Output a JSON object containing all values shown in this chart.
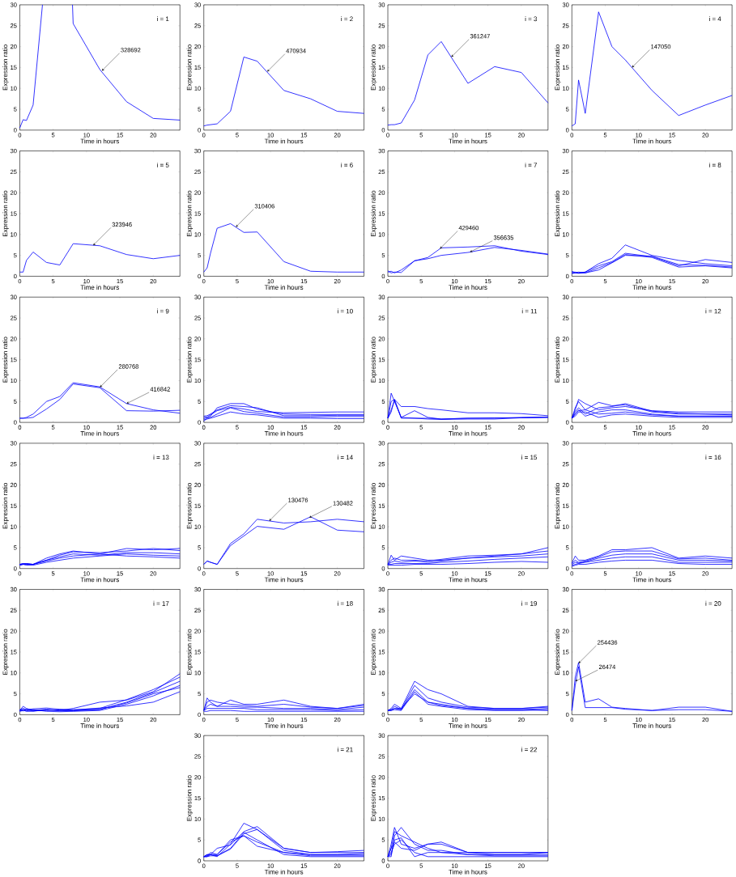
{
  "chart_data": [
    {
      "type": "line",
      "title": "i = 1",
      "xlabel": "Time in hours",
      "ylabel": "Expression ratio",
      "xlim": [
        0,
        24
      ],
      "ylim": [
        0,
        30
      ],
      "xticks": [
        0,
        5,
        10,
        15,
        20
      ],
      "yticks": [
        0,
        5,
        10,
        15,
        20,
        25,
        30
      ],
      "series": [
        {
          "color": "#0000ff",
          "x": [
            0,
            0.5,
            1,
            2,
            3.4,
            6,
            7.9,
            8,
            12,
            16,
            20,
            24
          ],
          "values": [
            0.5,
            2.5,
            2.3,
            6,
            30,
            null,
            30,
            25.5,
            14.5,
            6.8,
            2.8,
            2.4
          ]
        }
      ],
      "annotations": [
        {
          "text": "328692",
          "x": 12.3,
          "y": 14.2
        }
      ]
    },
    {
      "type": "line",
      "title": "i = 2",
      "xlabel": "Time in hours",
      "ylabel": "Expression ratio",
      "xlim": [
        0,
        24
      ],
      "ylim": [
        0,
        30
      ],
      "xticks": [
        0,
        5,
        10,
        15,
        20
      ],
      "yticks": [
        0,
        5,
        10,
        15,
        20,
        25,
        30
      ],
      "x": [
        0,
        0.5,
        1,
        2,
        4,
        6,
        8,
        12,
        16,
        20,
        24
      ],
      "series": [
        {
          "color": "#0000ff",
          "values": [
            1,
            1.2,
            1.3,
            1.5,
            4.5,
            17.5,
            16.5,
            9.5,
            7.5,
            4.5,
            4
          ]
        }
      ],
      "annotations": [
        {
          "text": "470934",
          "x": 9.5,
          "y": 14
        }
      ]
    },
    {
      "type": "line",
      "title": "i = 3",
      "xlabel": "Time in hours",
      "ylabel": "Expression ratio",
      "xlim": [
        0,
        24
      ],
      "ylim": [
        0,
        30
      ],
      "xticks": [
        0,
        5,
        10,
        15,
        20
      ],
      "yticks": [
        0,
        5,
        10,
        15,
        20,
        25,
        30
      ],
      "x": [
        0,
        0.5,
        1,
        2,
        4,
        6,
        8,
        12,
        16,
        20,
        24
      ],
      "series": [
        {
          "color": "#0000ff",
          "values": [
            1.2,
            1.3,
            1.3,
            1.7,
            7.2,
            18,
            21.2,
            11.2,
            15.2,
            13.8,
            6.5
          ]
        }
      ],
      "annotations": [
        {
          "text": "361247",
          "x": 9.5,
          "y": 17.5
        }
      ]
    },
    {
      "type": "line",
      "title": "i = 4",
      "xlabel": "Time in hours",
      "ylabel": "Expression ratio",
      "xlim": [
        0,
        24
      ],
      "ylim": [
        0,
        30
      ],
      "xticks": [
        0,
        5,
        10,
        15,
        20
      ],
      "yticks": [
        0,
        5,
        10,
        15,
        20,
        25,
        30
      ],
      "x": [
        0,
        0.5,
        1,
        2,
        4,
        6,
        8,
        12,
        16,
        20,
        24
      ],
      "series": [
        {
          "color": "#0000ff",
          "values": [
            1,
            1.5,
            12,
            4,
            28.3,
            20,
            16.8,
            9.5,
            3.5,
            6,
            8.3
          ]
        }
      ],
      "annotations": [
        {
          "text": "147050",
          "x": 9,
          "y": 15
        }
      ]
    },
    {
      "type": "line",
      "title": "i = 5",
      "xlabel": "Time in hours",
      "ylabel": "Expression ratio",
      "xlim": [
        0,
        24
      ],
      "ylim": [
        0,
        30
      ],
      "xticks": [
        0,
        5,
        10,
        15,
        20
      ],
      "yticks": [
        0,
        5,
        10,
        15,
        20,
        25,
        30
      ],
      "x": [
        0,
        0.5,
        1,
        2,
        4,
        6,
        8,
        12,
        16,
        20,
        24
      ],
      "series": [
        {
          "color": "#0000ff",
          "values": [
            1,
            1,
            3.8,
            5.8,
            3.3,
            2.7,
            7.8,
            7.3,
            5.2,
            4.2,
            5
          ]
        }
      ],
      "annotations": [
        {
          "text": "323946",
          "x": 11,
          "y": 7.4
        }
      ]
    },
    {
      "type": "line",
      "title": "i = 6",
      "xlabel": "Time in hours",
      "ylabel": "Expression ratio",
      "xlim": [
        0,
        24
      ],
      "ylim": [
        0,
        30
      ],
      "xticks": [
        0,
        5,
        10,
        15,
        20
      ],
      "yticks": [
        0,
        5,
        10,
        15,
        20,
        25,
        30
      ],
      "x": [
        0,
        0.5,
        1,
        2,
        4,
        6,
        8,
        12,
        16,
        20,
        24
      ],
      "series": [
        {
          "color": "#0000ff",
          "values": [
            1,
            2,
            5.5,
            11.5,
            12.6,
            10.5,
            10.6,
            3.5,
            1.2,
            1,
            1
          ]
        }
      ],
      "annotations": [
        {
          "text": "310406",
          "x": 4.8,
          "y": 11.8
        }
      ]
    },
    {
      "type": "line",
      "title": "i = 7",
      "xlabel": "Time in hours",
      "ylabel": "Expression ratio",
      "xlim": [
        0,
        24
      ],
      "ylim": [
        0,
        30
      ],
      "xticks": [
        0,
        5,
        10,
        15,
        20
      ],
      "yticks": [
        0,
        5,
        10,
        15,
        20,
        25,
        30
      ],
      "x": [
        0,
        0.5,
        1,
        2,
        4,
        6,
        8,
        12,
        16,
        20,
        24
      ],
      "series": [
        {
          "color": "#0000ff",
          "values": [
            1.3,
            0.8,
            1,
            0.9,
            3.7,
            4.5,
            6.8,
            7,
            7.3,
            6,
            5.2
          ]
        },
        {
          "color": "#0000ff",
          "values": [
            1,
            1.2,
            0.8,
            1.5,
            3.7,
            4.2,
            5,
            5.7,
            6.9,
            6.2,
            5.3
          ]
        }
      ],
      "annotations": [
        {
          "text": "429460",
          "x": 7.8,
          "y": 6.6
        },
        {
          "text": "356635",
          "x": 12.3,
          "y": 5.8
        }
      ]
    },
    {
      "type": "line",
      "title": "i = 8",
      "xlabel": "Time in hours",
      "ylabel": "Expression ratio",
      "xlim": [
        0,
        24
      ],
      "ylim": [
        0,
        30
      ],
      "xticks": [
        0,
        5,
        10,
        15,
        20
      ],
      "yticks": [
        0,
        5,
        10,
        15,
        20,
        25,
        30
      ],
      "x": [
        0,
        0.5,
        1,
        2,
        4,
        6,
        8,
        12,
        16,
        20,
        24
      ],
      "series": [
        {
          "color": "#0000ff",
          "values": [
            1,
            1,
            0.8,
            1,
            3,
            4.3,
            7.5,
            5,
            3.8,
            3,
            2.5
          ]
        },
        {
          "color": "#0000ff",
          "values": [
            0.8,
            0.8,
            0.8,
            1,
            2.5,
            3.5,
            5.5,
            4.7,
            2.5,
            4,
            3.3
          ]
        },
        {
          "color": "#0000ff",
          "values": [
            1.2,
            0.8,
            1,
            0.8,
            2,
            3.3,
            5.2,
            4.5,
            2.2,
            2.5,
            2
          ]
        },
        {
          "color": "#0000ff",
          "values": [
            0.6,
            0.8,
            0.7,
            0.8,
            1.5,
            3.2,
            5,
            4.8,
            2.8,
            2.6,
            2.2
          ]
        }
      ]
    },
    {
      "type": "line",
      "title": "i = 9",
      "xlabel": "Time in hours",
      "ylabel": "Expression ratio",
      "xlim": [
        0,
        24
      ],
      "ylim": [
        0,
        30
      ],
      "xticks": [
        0,
        5,
        10,
        15,
        20
      ],
      "yticks": [
        0,
        5,
        10,
        15,
        20,
        25,
        30
      ],
      "x": [
        0,
        0.5,
        1,
        2,
        4,
        6,
        8,
        12,
        16,
        20,
        24
      ],
      "series": [
        {
          "color": "#0000ff",
          "values": [
            1,
            1,
            1.2,
            2,
            5,
            6.2,
            9.5,
            8.5,
            4.5,
            3,
            2.2
          ]
        },
        {
          "color": "#0000ff",
          "values": [
            1,
            1,
            1,
            1.2,
            3.2,
            5.5,
            9.2,
            8.3,
            2.8,
            2.7,
            2.9
          ]
        }
      ],
      "annotations": [
        {
          "text": "280768",
          "x": 12,
          "y": 8.4
        },
        {
          "text": "416842",
          "x": 16,
          "y": 4.5
        }
      ]
    },
    {
      "type": "line",
      "title": "i = 10",
      "xlabel": "Time in hours",
      "ylabel": "Expression ratio",
      "xlim": [
        0,
        24
      ],
      "ylim": [
        0,
        30
      ],
      "xticks": [
        0,
        5,
        10,
        15,
        20
      ],
      "yticks": [
        0,
        5,
        10,
        15,
        20,
        25,
        30
      ],
      "x": [
        0,
        0.5,
        1,
        2,
        4,
        6,
        8,
        12,
        16,
        20,
        24
      ],
      "series": [
        {
          "color": "#0000ff",
          "values": [
            0.3,
            1,
            1.5,
            3.5,
            4.5,
            4.5,
            3.2,
            2,
            1.9,
            1.9,
            1.9
          ]
        },
        {
          "color": "#0000ff",
          "values": [
            1.5,
            1.6,
            2,
            3,
            4,
            3.8,
            3.5,
            1.6,
            1.6,
            1.7,
            1.7
          ]
        },
        {
          "color": "#0000ff",
          "values": [
            0.9,
            1.1,
            1.2,
            2,
            3.5,
            2.6,
            2.2,
            1.3,
            1.3,
            1.4,
            1.4
          ]
        },
        {
          "color": "#0000ff",
          "values": [
            0.6,
            0.8,
            1,
            1.5,
            2.5,
            2,
            1.8,
            1,
            1,
            0.9,
            0.9
          ]
        },
        {
          "color": "#0000ff",
          "values": [
            1.2,
            1.3,
            1.8,
            2.8,
            3.6,
            3.2,
            2.6,
            2.3,
            2.4,
            2.5,
            2.5
          ]
        }
      ]
    },
    {
      "type": "line",
      "title": "i = 11",
      "xlabel": "Time in hours",
      "ylabel": "Expression ratio",
      "xlim": [
        0,
        24
      ],
      "ylim": [
        0,
        30
      ],
      "xticks": [
        0,
        5,
        10,
        15,
        20
      ],
      "yticks": [
        0,
        5,
        10,
        15,
        20,
        25,
        30
      ],
      "x": [
        0,
        0.5,
        1,
        2,
        4,
        6,
        8,
        12,
        16,
        20,
        24
      ],
      "series": [
        {
          "color": "#0000ff",
          "values": [
            1,
            7,
            5,
            1.2,
            2.8,
            1.2,
            0.8,
            1,
            1.1,
            1.1,
            1.2
          ]
        },
        {
          "color": "#0000ff",
          "values": [
            1,
            5,
            5.5,
            3.8,
            3.8,
            3.3,
            3,
            2.3,
            2.3,
            2.1,
            1.6
          ]
        },
        {
          "color": "#0000ff",
          "values": [
            1,
            3,
            5.3,
            1,
            1,
            0.8,
            0.7,
            0.8,
            0.8,
            1.1,
            1.2
          ]
        },
        {
          "color": "#0000ff",
          "values": [
            1,
            2.5,
            5.5,
            1.2,
            1,
            1,
            0.8,
            1,
            1,
            1.2,
            1.3
          ]
        }
      ]
    },
    {
      "type": "line",
      "title": "i = 12",
      "xlabel": "Time in hours",
      "ylabel": "Expression ratio",
      "xlim": [
        0,
        24
      ],
      "ylim": [
        0,
        30
      ],
      "xticks": [
        0,
        5,
        10,
        15,
        20
      ],
      "yticks": [
        0,
        5,
        10,
        15,
        20,
        25,
        30
      ],
      "x": [
        0,
        0.5,
        1,
        2,
        4,
        6,
        8,
        12,
        16,
        20,
        24
      ],
      "series": [
        {
          "color": "#0000ff",
          "values": [
            1,
            3,
            5.5,
            4.5,
            3,
            3.5,
            3.8,
            2.8,
            2.5,
            2.5,
            2.5
          ]
        },
        {
          "color": "#0000ff",
          "values": [
            1,
            3.5,
            5,
            3,
            4.8,
            4,
            4.2,
            2.5,
            2,
            2,
            2
          ]
        },
        {
          "color": "#0000ff",
          "values": [
            1,
            2.5,
            3.5,
            2,
            3.5,
            3.8,
            4.5,
            2.7,
            2.2,
            2,
            1.8
          ]
        },
        {
          "color": "#0000ff",
          "values": [
            1,
            2,
            3,
            1.5,
            2.5,
            3,
            3,
            2,
            1.5,
            1.5,
            1.5
          ]
        },
        {
          "color": "#0000ff",
          "values": [
            1,
            1.5,
            2.5,
            2.5,
            1.2,
            1.8,
            2,
            1.5,
            1.2,
            1.2,
            1.2
          ]
        },
        {
          "color": "#0000ff",
          "values": [
            1,
            2,
            2.8,
            3,
            2,
            2.2,
            2.5,
            1.8,
            1.5,
            1.5,
            1.5
          ]
        }
      ]
    },
    {
      "type": "line",
      "title": "i = 13",
      "xlabel": "Time in hours",
      "ylabel": "Expression ratio",
      "xlim": [
        0,
        24
      ],
      "ylim": [
        0,
        30
      ],
      "xticks": [
        0,
        5,
        10,
        15,
        20
      ],
      "yticks": [
        0,
        5,
        10,
        15,
        20,
        25,
        30
      ],
      "x": [
        0,
        0.5,
        1,
        2,
        4,
        6,
        8,
        12,
        16,
        20,
        24
      ],
      "series": [
        {
          "color": "#0000ff",
          "values": [
            1,
            1,
            1.2,
            1,
            2.5,
            3.5,
            4.2,
            3.5,
            4.8,
            4.5,
            4.8
          ]
        },
        {
          "color": "#0000ff",
          "values": [
            0.8,
            1,
            1,
            1,
            2,
            3.2,
            4,
            3.8,
            4.2,
            4.8,
            4.3
          ]
        },
        {
          "color": "#0000ff",
          "values": [
            1,
            1.2,
            1.2,
            1,
            2,
            2.8,
            3.5,
            3.2,
            3.8,
            3.8,
            3.5
          ]
        },
        {
          "color": "#0000ff",
          "values": [
            0.8,
            1,
            0.8,
            0.8,
            1.5,
            2,
            2.5,
            3,
            3.5,
            3.2,
            3
          ]
        },
        {
          "color": "#0000ff",
          "values": [
            1,
            1.2,
            1,
            1,
            1.8,
            2.5,
            3,
            3.5,
            3,
            2.8,
            2.5
          ]
        }
      ]
    },
    {
      "type": "line",
      "title": "i = 14",
      "xlabel": "Time in hours",
      "ylabel": "Expression ratio",
      "xlim": [
        0,
        24
      ],
      "ylim": [
        0,
        30
      ],
      "xticks": [
        0,
        5,
        10,
        15,
        20
      ],
      "yticks": [
        0,
        5,
        10,
        15,
        20,
        25,
        30
      ],
      "x": [
        0,
        0.5,
        1,
        2,
        4,
        6,
        8,
        12,
        16,
        20,
        24
      ],
      "series": [
        {
          "color": "#0000ff",
          "values": [
            1,
            1.8,
            1.5,
            1,
            6,
            8.3,
            11.8,
            10.9,
            11.2,
            11.8,
            11.2
          ]
        },
        {
          "color": "#0000ff",
          "values": [
            1,
            1.8,
            1.5,
            1,
            5.5,
            7.8,
            10.1,
            9.4,
            12.4,
            9.2,
            8.8
          ]
        }
      ],
      "annotations": [
        {
          "text": "130476",
          "x": 9.8,
          "y": 11.4
        },
        {
          "text": "130482",
          "x": 15.8,
          "y": 12.2
        }
      ]
    },
    {
      "type": "line",
      "title": "i = 15",
      "xlabel": "Time in hours",
      "ylabel": "Expression ratio",
      "xlim": [
        0,
        24
      ],
      "ylim": [
        0,
        30
      ],
      "xticks": [
        0,
        5,
        10,
        15,
        20
      ],
      "yticks": [
        0,
        5,
        10,
        15,
        20,
        25,
        30
      ],
      "x": [
        0,
        0.5,
        1,
        2,
        4,
        6,
        8,
        12,
        16,
        20,
        24
      ],
      "series": [
        {
          "color": "#0000ff",
          "values": [
            1,
            3.2,
            2,
            3,
            2.5,
            2,
            2,
            2.5,
            3,
            3.5,
            5
          ]
        },
        {
          "color": "#0000ff",
          "values": [
            1,
            2,
            2.5,
            2,
            2,
            1.8,
            2.2,
            3,
            3.2,
            3.5,
            4.2
          ]
        },
        {
          "color": "#0000ff",
          "values": [
            1,
            1.5,
            1.8,
            1.5,
            1.8,
            1.5,
            1.8,
            2.5,
            2.8,
            3,
            3.5
          ]
        },
        {
          "color": "#0000ff",
          "values": [
            1,
            1,
            1.2,
            1.2,
            1.2,
            1.2,
            1.5,
            1.8,
            2.2,
            2.5,
            2.8
          ]
        },
        {
          "color": "#0000ff",
          "values": [
            0.8,
            0.8,
            0.8,
            0.8,
            1,
            1,
            1,
            1.2,
            1.5,
            1.7,
            1.5
          ]
        }
      ]
    },
    {
      "type": "line",
      "title": "i = 16",
      "xlabel": "Time in hours",
      "ylabel": "Expression ratio",
      "xlim": [
        0,
        24
      ],
      "ylim": [
        0,
        30
      ],
      "xticks": [
        0,
        5,
        10,
        15,
        20
      ],
      "yticks": [
        0,
        5,
        10,
        15,
        20,
        25,
        30
      ],
      "x": [
        0,
        0.5,
        1,
        2,
        4,
        6,
        8,
        12,
        16,
        20,
        24
      ],
      "series": [
        {
          "color": "#0000ff",
          "values": [
            1.3,
            3,
            2,
            2,
            3,
            4.5,
            4.5,
            5,
            2.5,
            3,
            2.5
          ]
        },
        {
          "color": "#0000ff",
          "values": [
            1.1,
            2,
            1.5,
            1.8,
            2.8,
            4,
            4.2,
            4.2,
            2.3,
            2.5,
            2
          ]
        },
        {
          "color": "#0000ff",
          "values": [
            0.9,
            1.5,
            1.3,
            1.6,
            2.5,
            3.2,
            3.5,
            3.5,
            2,
            2,
            1.8
          ]
        },
        {
          "color": "#0000ff",
          "values": [
            0.7,
            1,
            1.2,
            1.5,
            2,
            2.5,
            2.8,
            2.8,
            1.5,
            1.5,
            1.5
          ]
        },
        {
          "color": "#0000ff",
          "values": [
            0.5,
            0.8,
            1,
            1,
            1.5,
            1.8,
            2,
            2,
            1.2,
            1,
            1
          ]
        }
      ]
    },
    {
      "type": "line",
      "title": "i = 17",
      "xlabel": "Time in hours",
      "ylabel": "Expression ratio",
      "xlim": [
        0,
        24
      ],
      "ylim": [
        0,
        30
      ],
      "xticks": [
        0,
        5,
        10,
        15,
        20
      ],
      "yticks": [
        0,
        5,
        10,
        15,
        20,
        25,
        30
      ],
      "x": [
        0,
        0.5,
        1,
        2,
        4,
        6,
        8,
        12,
        16,
        20,
        24
      ],
      "series": [
        {
          "color": "#0000ff",
          "values": [
            1,
            2,
            1.5,
            1,
            1.3,
            1,
            1.5,
            3,
            3.5,
            5.5,
            9.8
          ]
        },
        {
          "color": "#0000ff",
          "values": [
            1.2,
            1.5,
            1.2,
            1.4,
            1.6,
            1.3,
            1.2,
            1.5,
            3.6,
            6,
            9
          ]
        },
        {
          "color": "#0000ff",
          "values": [
            0.9,
            1.3,
            1.1,
            0.9,
            1.1,
            1.1,
            0.9,
            1.2,
            3,
            5.3,
            8
          ]
        },
        {
          "color": "#0000ff",
          "values": [
            0.8,
            1,
            0.9,
            1.2,
            0.8,
            0.7,
            0.8,
            1,
            2.5,
            4.5,
            7
          ]
        },
        {
          "color": "#0000ff",
          "values": [
            1.1,
            0.9,
            1.3,
            1.1,
            1,
            1.2,
            1.1,
            1.6,
            2.1,
            3,
            5.5
          ]
        },
        {
          "color": "#0000ff",
          "values": [
            1,
            1.1,
            0.8,
            0.8,
            1.2,
            0.9,
            1,
            1.3,
            2.8,
            5,
            6.5
          ]
        }
      ]
    },
    {
      "type": "line",
      "title": "i = 18",
      "xlabel": "Time in hours",
      "ylabel": "Expression ratio",
      "xlim": [
        0,
        24
      ],
      "ylim": [
        0,
        30
      ],
      "xticks": [
        0,
        5,
        10,
        15,
        20
      ],
      "yticks": [
        0,
        5,
        10,
        15,
        20,
        25,
        30
      ],
      "x": [
        0,
        0.5,
        1,
        2,
        4,
        6,
        8,
        12,
        16,
        20,
        24
      ],
      "series": [
        {
          "color": "#0000ff",
          "values": [
            1,
            4,
            3,
            2,
            3.5,
            2.5,
            2.5,
            3.5,
            2,
            1.5,
            2.5
          ]
        },
        {
          "color": "#0000ff",
          "values": [
            1,
            3,
            3.5,
            3,
            2.5,
            2.2,
            2,
            2.5,
            1.8,
            1.5,
            2.2
          ]
        },
        {
          "color": "#0000ff",
          "values": [
            1,
            2,
            2.5,
            2,
            2,
            1.8,
            1.8,
            1.5,
            1.5,
            1.2,
            1.8
          ]
        },
        {
          "color": "#0000ff",
          "values": [
            1,
            1.5,
            1.5,
            1.5,
            1.5,
            1.5,
            1.2,
            1.2,
            1.2,
            1,
            1.2
          ]
        },
        {
          "color": "#0000ff",
          "values": [
            0.8,
            0.8,
            1,
            1,
            1,
            0.8,
            0.8,
            0.8,
            0.8,
            0.8,
            0.8
          ]
        }
      ]
    },
    {
      "type": "line",
      "title": "i = 19",
      "xlabel": "Time in hours",
      "ylabel": "Expression ratio",
      "xlim": [
        0,
        24
      ],
      "ylim": [
        0,
        30
      ],
      "xticks": [
        0,
        5,
        10,
        15,
        20
      ],
      "yticks": [
        0,
        5,
        10,
        15,
        20,
        25,
        30
      ],
      "x": [
        0,
        0.5,
        1,
        2,
        4,
        6,
        8,
        12,
        16,
        20,
        24
      ],
      "series": [
        {
          "color": "#0000ff",
          "values": [
            1,
            1.5,
            2.5,
            1.5,
            8,
            6,
            5,
            2,
            1.5,
            1.5,
            2
          ]
        },
        {
          "color": "#0000ff",
          "values": [
            1,
            1.2,
            2,
            1.2,
            7,
            4,
            3,
            1.8,
            1.5,
            1.5,
            1.8
          ]
        },
        {
          "color": "#0000ff",
          "values": [
            1,
            1,
            1.5,
            1.2,
            6,
            3,
            2.5,
            1.5,
            1.2,
            1.2,
            1.5
          ]
        },
        {
          "color": "#0000ff",
          "values": [
            1,
            1,
            1.2,
            1,
            5.5,
            2.5,
            2,
            1.2,
            1,
            1,
            1.2
          ]
        },
        {
          "color": "#0000ff",
          "values": [
            1,
            1.2,
            1.5,
            1.5,
            5,
            3,
            2.2,
            1.5,
            1.2,
            1.2,
            1
          ]
        }
      ]
    },
    {
      "type": "line",
      "title": "i = 20",
      "xlabel": "Time in hours",
      "ylabel": "Expression ratio",
      "xlim": [
        0,
        24
      ],
      "ylim": [
        0,
        30
      ],
      "xticks": [
        0,
        5,
        10,
        15,
        20
      ],
      "yticks": [
        0,
        5,
        10,
        15,
        20,
        25,
        30
      ],
      "x": [
        0,
        0.5,
        1,
        2,
        4,
        6,
        8,
        12,
        16,
        20,
        24
      ],
      "series": [
        {
          "color": "#0000ff",
          "values": [
            1,
            9,
            12.5,
            3,
            3.8,
            1.8,
            1.5,
            1,
            1.8,
            1.8,
            0.8
          ]
        },
        {
          "color": "#0000ff",
          "values": [
            1,
            7,
            11.5,
            1.7,
            1.7,
            1.7,
            1.3,
            1,
            1.2,
            1.2,
            0.8
          ]
        }
      ],
      "annotations": [
        {
          "text": "254436",
          "x": 1,
          "y": 12.3
        },
        {
          "text": "26474",
          "x": 0.5,
          "y": 8
        }
      ]
    },
    {
      "type": "line",
      "title": "i = 21",
      "xlabel": "Time in hours",
      "ylabel": "Expression ratio",
      "xlim": [
        0,
        24
      ],
      "ylim": [
        0,
        30
      ],
      "xticks": [
        0,
        5,
        10,
        15,
        20
      ],
      "yticks": [
        0,
        5,
        10,
        15,
        20,
        25,
        30
      ],
      "x": [
        0,
        0.5,
        1,
        2,
        4,
        6,
        8,
        12,
        16,
        20,
        24
      ],
      "series": [
        {
          "color": "#0000ff",
          "values": [
            1,
            1,
            1.5,
            1,
            4,
            9,
            7.5,
            3,
            2,
            2.2,
            2.5
          ]
        },
        {
          "color": "#0000ff",
          "values": [
            1,
            1.5,
            1.5,
            3,
            3.8,
            7,
            8.2,
            3,
            2,
            2,
            2
          ]
        },
        {
          "color": "#0000ff",
          "values": [
            1,
            1,
            1.2,
            1.2,
            2.8,
            6.5,
            7.5,
            2.5,
            1.5,
            1.5,
            1.8
          ]
        },
        {
          "color": "#0000ff",
          "values": [
            1,
            1.2,
            2,
            1.5,
            4.5,
            6,
            4.5,
            2,
            1.2,
            1.2,
            1.2
          ]
        },
        {
          "color": "#0000ff",
          "values": [
            1,
            1.2,
            1.5,
            1.2,
            3,
            6.8,
            5,
            1.5,
            1,
            1,
            1
          ]
        },
        {
          "color": "#0000ff",
          "values": [
            1,
            1.5,
            1.5,
            1.5,
            5,
            6,
            3.5,
            2,
            1.5,
            1.5,
            1.5
          ]
        }
      ]
    },
    {
      "type": "line",
      "title": "i = 22",
      "xlabel": "Time in hours",
      "ylabel": "Expression ratio",
      "xlim": [
        0,
        24
      ],
      "ylim": [
        0,
        30
      ],
      "xticks": [
        0,
        5,
        10,
        15,
        20
      ],
      "yticks": [
        0,
        5,
        10,
        15,
        20,
        25,
        30
      ],
      "x": [
        0,
        0.5,
        1,
        2,
        4,
        6,
        8,
        12,
        16,
        20,
        24
      ],
      "series": [
        {
          "color": "#0000ff",
          "values": [
            1,
            4,
            8,
            4,
            3,
            4,
            4.5,
            2,
            1.5,
            1.5,
            2
          ]
        },
        {
          "color": "#0000ff",
          "values": [
            1,
            1,
            6,
            8,
            4,
            2.5,
            2.5,
            1.5,
            1.5,
            1.5,
            1.5
          ]
        },
        {
          "color": "#0000ff",
          "values": [
            1,
            3,
            7,
            6,
            4.5,
            3,
            2,
            2,
            2,
            2,
            2
          ]
        },
        {
          "color": "#0000ff",
          "values": [
            1,
            1.5,
            5,
            5.5,
            1,
            2,
            2,
            1.5,
            1.2,
            1.2,
            1.2
          ]
        },
        {
          "color": "#0000ff",
          "values": [
            1,
            2,
            4,
            5,
            2,
            1,
            1,
            1,
            1,
            1,
            1
          ]
        },
        {
          "color": "#0000ff",
          "values": [
            1,
            3,
            4.5,
            3,
            2.5,
            4,
            4,
            2,
            2,
            2,
            2
          ]
        }
      ]
    }
  ]
}
